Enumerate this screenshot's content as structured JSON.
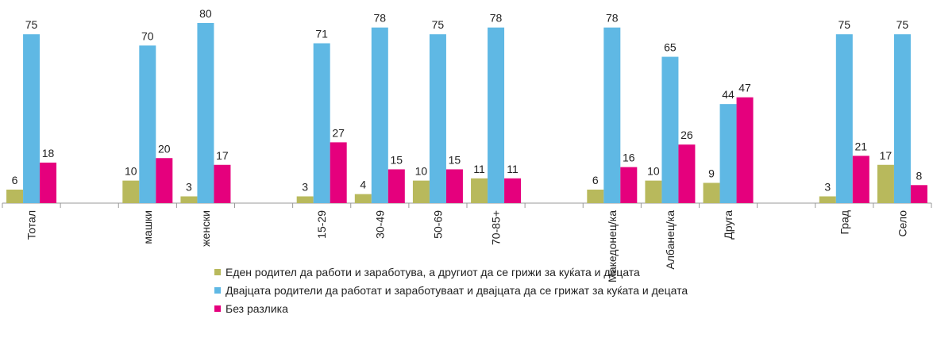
{
  "chart_data": {
    "type": "bar",
    "categories": [
      "Тотал",
      null,
      "машки",
      "женски",
      null,
      "15-29",
      "30-49",
      "50-69",
      "70-85+",
      null,
      "Македонец/ка",
      "Албанец/ка",
      "Друга",
      null,
      "Град",
      "Село"
    ],
    "series": [
      {
        "name": "Еден родител да работи и заработува, а другиот да се грижи за куќата и децата",
        "color": "#b8b95c",
        "values": [
          6,
          null,
          10,
          3,
          null,
          3,
          4,
          10,
          11,
          null,
          6,
          10,
          9,
          null,
          3,
          17
        ]
      },
      {
        "name": "Двајцата родители да работат и заработуваат и двајцата да се грижат за куќата и децата",
        "color": "#5fb8e4",
        "values": [
          75,
          null,
          70,
          80,
          null,
          71,
          78,
          75,
          78,
          null,
          78,
          65,
          44,
          null,
          75,
          75
        ]
      },
      {
        "name": "Без разлика",
        "color": "#e5007d",
        "values": [
          18,
          null,
          20,
          17,
          null,
          27,
          15,
          15,
          11,
          null,
          16,
          26,
          47,
          null,
          21,
          8
        ]
      }
    ],
    "ylim": [
      0,
      80
    ],
    "legend": "bottom"
  }
}
